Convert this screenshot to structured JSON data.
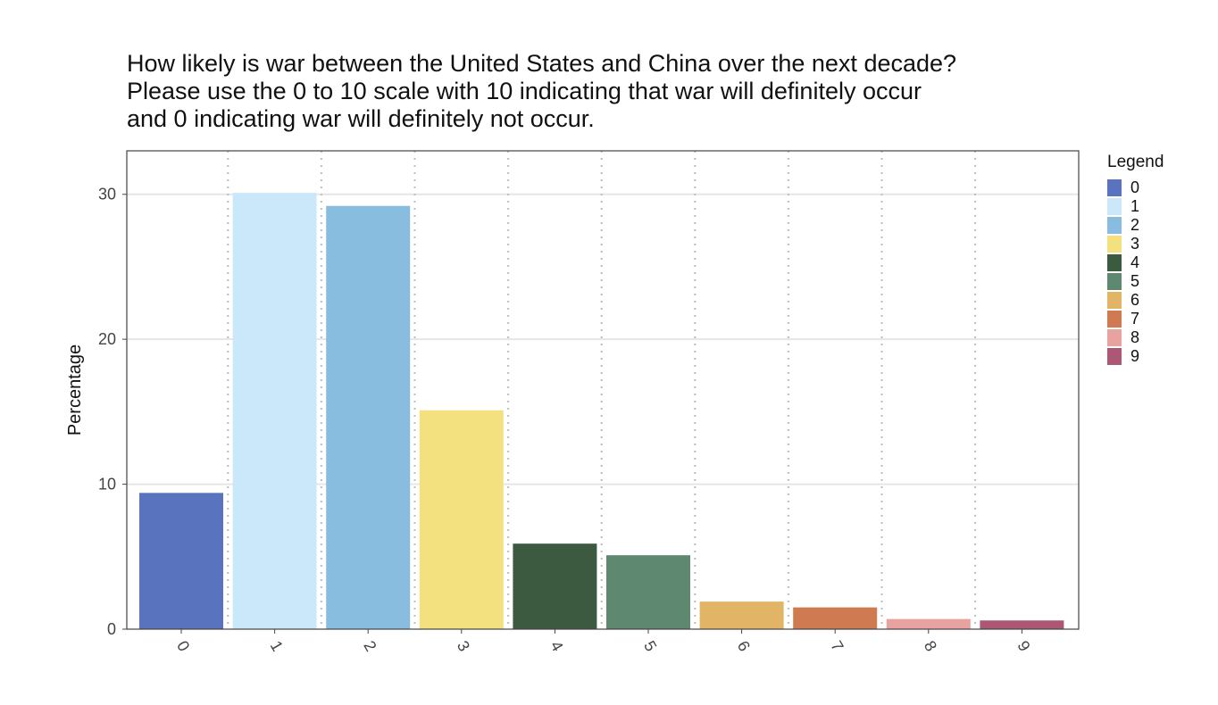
{
  "chart_data": {
    "type": "bar",
    "title_lines": [
      "How likely is war between the United States and China over the next decade?",
      "Please use the 0 to 10 scale with 10 indicating that war will definitely occur",
      "and 0 indicating war will definitely not occur."
    ],
    "xlabel": "",
    "ylabel": "Percentage",
    "ylim": [
      0,
      33
    ],
    "yticks": [
      0,
      10,
      20,
      30
    ],
    "categories": [
      "0",
      "1",
      "2",
      "3",
      "4",
      "5",
      "6",
      "7",
      "8",
      "9"
    ],
    "values": [
      9.4,
      30.1,
      29.2,
      15.1,
      5.9,
      5.1,
      1.9,
      1.5,
      0.7,
      0.6
    ],
    "colors": [
      "#5a73be",
      "#cbe8fb",
      "#88bde0",
      "#f2e17e",
      "#3b5a40",
      "#5f8870",
      "#e2b465",
      "#cf7a50",
      "#e8a3a0",
      "#ac5874"
    ],
    "grid": {
      "horizontal": true,
      "vertical_dotted": true
    },
    "legend": {
      "title": "Legend",
      "placement": "right",
      "entries": [
        "0",
        "1",
        "2",
        "3",
        "4",
        "5",
        "6",
        "7",
        "8",
        "9"
      ]
    }
  }
}
